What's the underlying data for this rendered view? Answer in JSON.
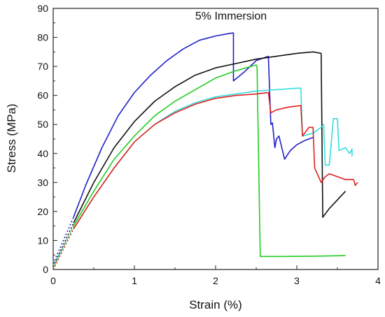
{
  "chart_data": {
    "type": "line",
    "title": "5% Immersion",
    "xlabel": "Strain (%)",
    "ylabel": "Stress (MPa)",
    "xlim": [
      0,
      4
    ],
    "ylim": [
      0,
      90
    ],
    "x_ticks": [
      "0",
      "1",
      "2",
      "3",
      "4"
    ],
    "y_ticks": [
      "0",
      "10",
      "20",
      "30",
      "40",
      "50",
      "60",
      "70",
      "80",
      "90"
    ],
    "grid": false,
    "legend": "none",
    "series": [
      {
        "color": "#1f1fc8",
        "points": [
          [
            0.25,
            18
          ],
          [
            0.4,
            29
          ],
          [
            0.6,
            42
          ],
          [
            0.8,
            53
          ],
          [
            1.0,
            61
          ],
          [
            1.2,
            67
          ],
          [
            1.4,
            72
          ],
          [
            1.6,
            76
          ],
          [
            1.8,
            79
          ],
          [
            2.0,
            80.5
          ],
          [
            2.2,
            81.5
          ],
          [
            2.22,
            81.5
          ],
          [
            2.22,
            65
          ],
          [
            2.35,
            68
          ],
          [
            2.5,
            72
          ],
          [
            2.6,
            73
          ],
          [
            2.65,
            73.5
          ],
          [
            2.68,
            50
          ],
          [
            2.7,
            50.5
          ],
          [
            2.73,
            42
          ],
          [
            2.75,
            45
          ],
          [
            2.78,
            46
          ],
          [
            2.85,
            38
          ],
          [
            2.92,
            41
          ],
          [
            3.0,
            43
          ],
          [
            3.1,
            44.5
          ],
          [
            3.2,
            45.5
          ]
        ]
      },
      {
        "color": "#111111",
        "points": [
          [
            0.25,
            16
          ],
          [
            0.5,
            30
          ],
          [
            0.75,
            42
          ],
          [
            1.0,
            51
          ],
          [
            1.25,
            58
          ],
          [
            1.5,
            63
          ],
          [
            1.75,
            67
          ],
          [
            2.0,
            69.5
          ],
          [
            2.25,
            71
          ],
          [
            2.5,
            72.5
          ],
          [
            2.75,
            73.5
          ],
          [
            3.0,
            74.5
          ],
          [
            3.2,
            75
          ],
          [
            3.3,
            74.5
          ],
          [
            3.32,
            18
          ],
          [
            3.4,
            21
          ],
          [
            3.5,
            24
          ],
          [
            3.6,
            27
          ]
        ]
      },
      {
        "color": "#22cc22",
        "points": [
          [
            0.25,
            15
          ],
          [
            0.5,
            27
          ],
          [
            0.75,
            38
          ],
          [
            1.0,
            46
          ],
          [
            1.25,
            53
          ],
          [
            1.5,
            58
          ],
          [
            1.75,
            62
          ],
          [
            2.0,
            66
          ],
          [
            2.25,
            68.5
          ],
          [
            2.5,
            70.5
          ],
          [
            2.51,
            70
          ],
          [
            2.55,
            4.5
          ],
          [
            2.8,
            4.5
          ],
          [
            3.2,
            4.6
          ],
          [
            3.6,
            4.8
          ]
        ]
      },
      {
        "color": "#33dddd",
        "points": [
          [
            0.25,
            14
          ],
          [
            0.5,
            25
          ],
          [
            0.75,
            35
          ],
          [
            1.0,
            44
          ],
          [
            1.25,
            50
          ],
          [
            1.5,
            54.5
          ],
          [
            1.75,
            57.5
          ],
          [
            2.0,
            59.5
          ],
          [
            2.25,
            60.5
          ],
          [
            2.5,
            61.5
          ],
          [
            2.75,
            62
          ],
          [
            3.0,
            62.5
          ],
          [
            3.05,
            62.5
          ],
          [
            3.07,
            46
          ],
          [
            3.2,
            47
          ],
          [
            3.3,
            49
          ],
          [
            3.33,
            50
          ],
          [
            3.35,
            36
          ],
          [
            3.4,
            36
          ],
          [
            3.45,
            52
          ],
          [
            3.5,
            52
          ],
          [
            3.52,
            41
          ],
          [
            3.6,
            42
          ],
          [
            3.65,
            40
          ],
          [
            3.68,
            41.5
          ],
          [
            3.68,
            39
          ]
        ]
      },
      {
        "color": "#dd2020",
        "points": [
          [
            0.25,
            14
          ],
          [
            0.5,
            25
          ],
          [
            0.75,
            35
          ],
          [
            1.0,
            44
          ],
          [
            1.25,
            50
          ],
          [
            1.5,
            54
          ],
          [
            1.75,
            57
          ],
          [
            2.0,
            59
          ],
          [
            2.25,
            60
          ],
          [
            2.5,
            60.5
          ],
          [
            2.65,
            61
          ],
          [
            2.68,
            54
          ],
          [
            2.75,
            55
          ],
          [
            2.9,
            56
          ],
          [
            3.05,
            56.5
          ],
          [
            3.07,
            46
          ],
          [
            3.15,
            49
          ],
          [
            3.2,
            49
          ],
          [
            3.22,
            35
          ],
          [
            3.3,
            30
          ],
          [
            3.35,
            32
          ],
          [
            3.4,
            33
          ],
          [
            3.5,
            32
          ],
          [
            3.6,
            31
          ],
          [
            3.7,
            31
          ],
          [
            3.72,
            29
          ],
          [
            3.75,
            30
          ]
        ]
      }
    ],
    "initial_segments": [
      {
        "color": "#111111",
        "points": [
          [
            0.0,
            1
          ],
          [
            0.25,
            16
          ]
        ]
      },
      {
        "color": "#1f1fc8",
        "points": [
          [
            0.0,
            2
          ],
          [
            0.25,
            18
          ]
        ]
      },
      {
        "color": "#22cc22",
        "points": [
          [
            0.0,
            0.5
          ],
          [
            0.25,
            15
          ]
        ]
      },
      {
        "color": "#33dddd",
        "points": [
          [
            0.0,
            1.5
          ],
          [
            0.25,
            14
          ]
        ]
      },
      {
        "color": "#dd2020",
        "points": [
          [
            0.0,
            0
          ],
          [
            0.25,
            14
          ]
        ]
      }
    ]
  }
}
